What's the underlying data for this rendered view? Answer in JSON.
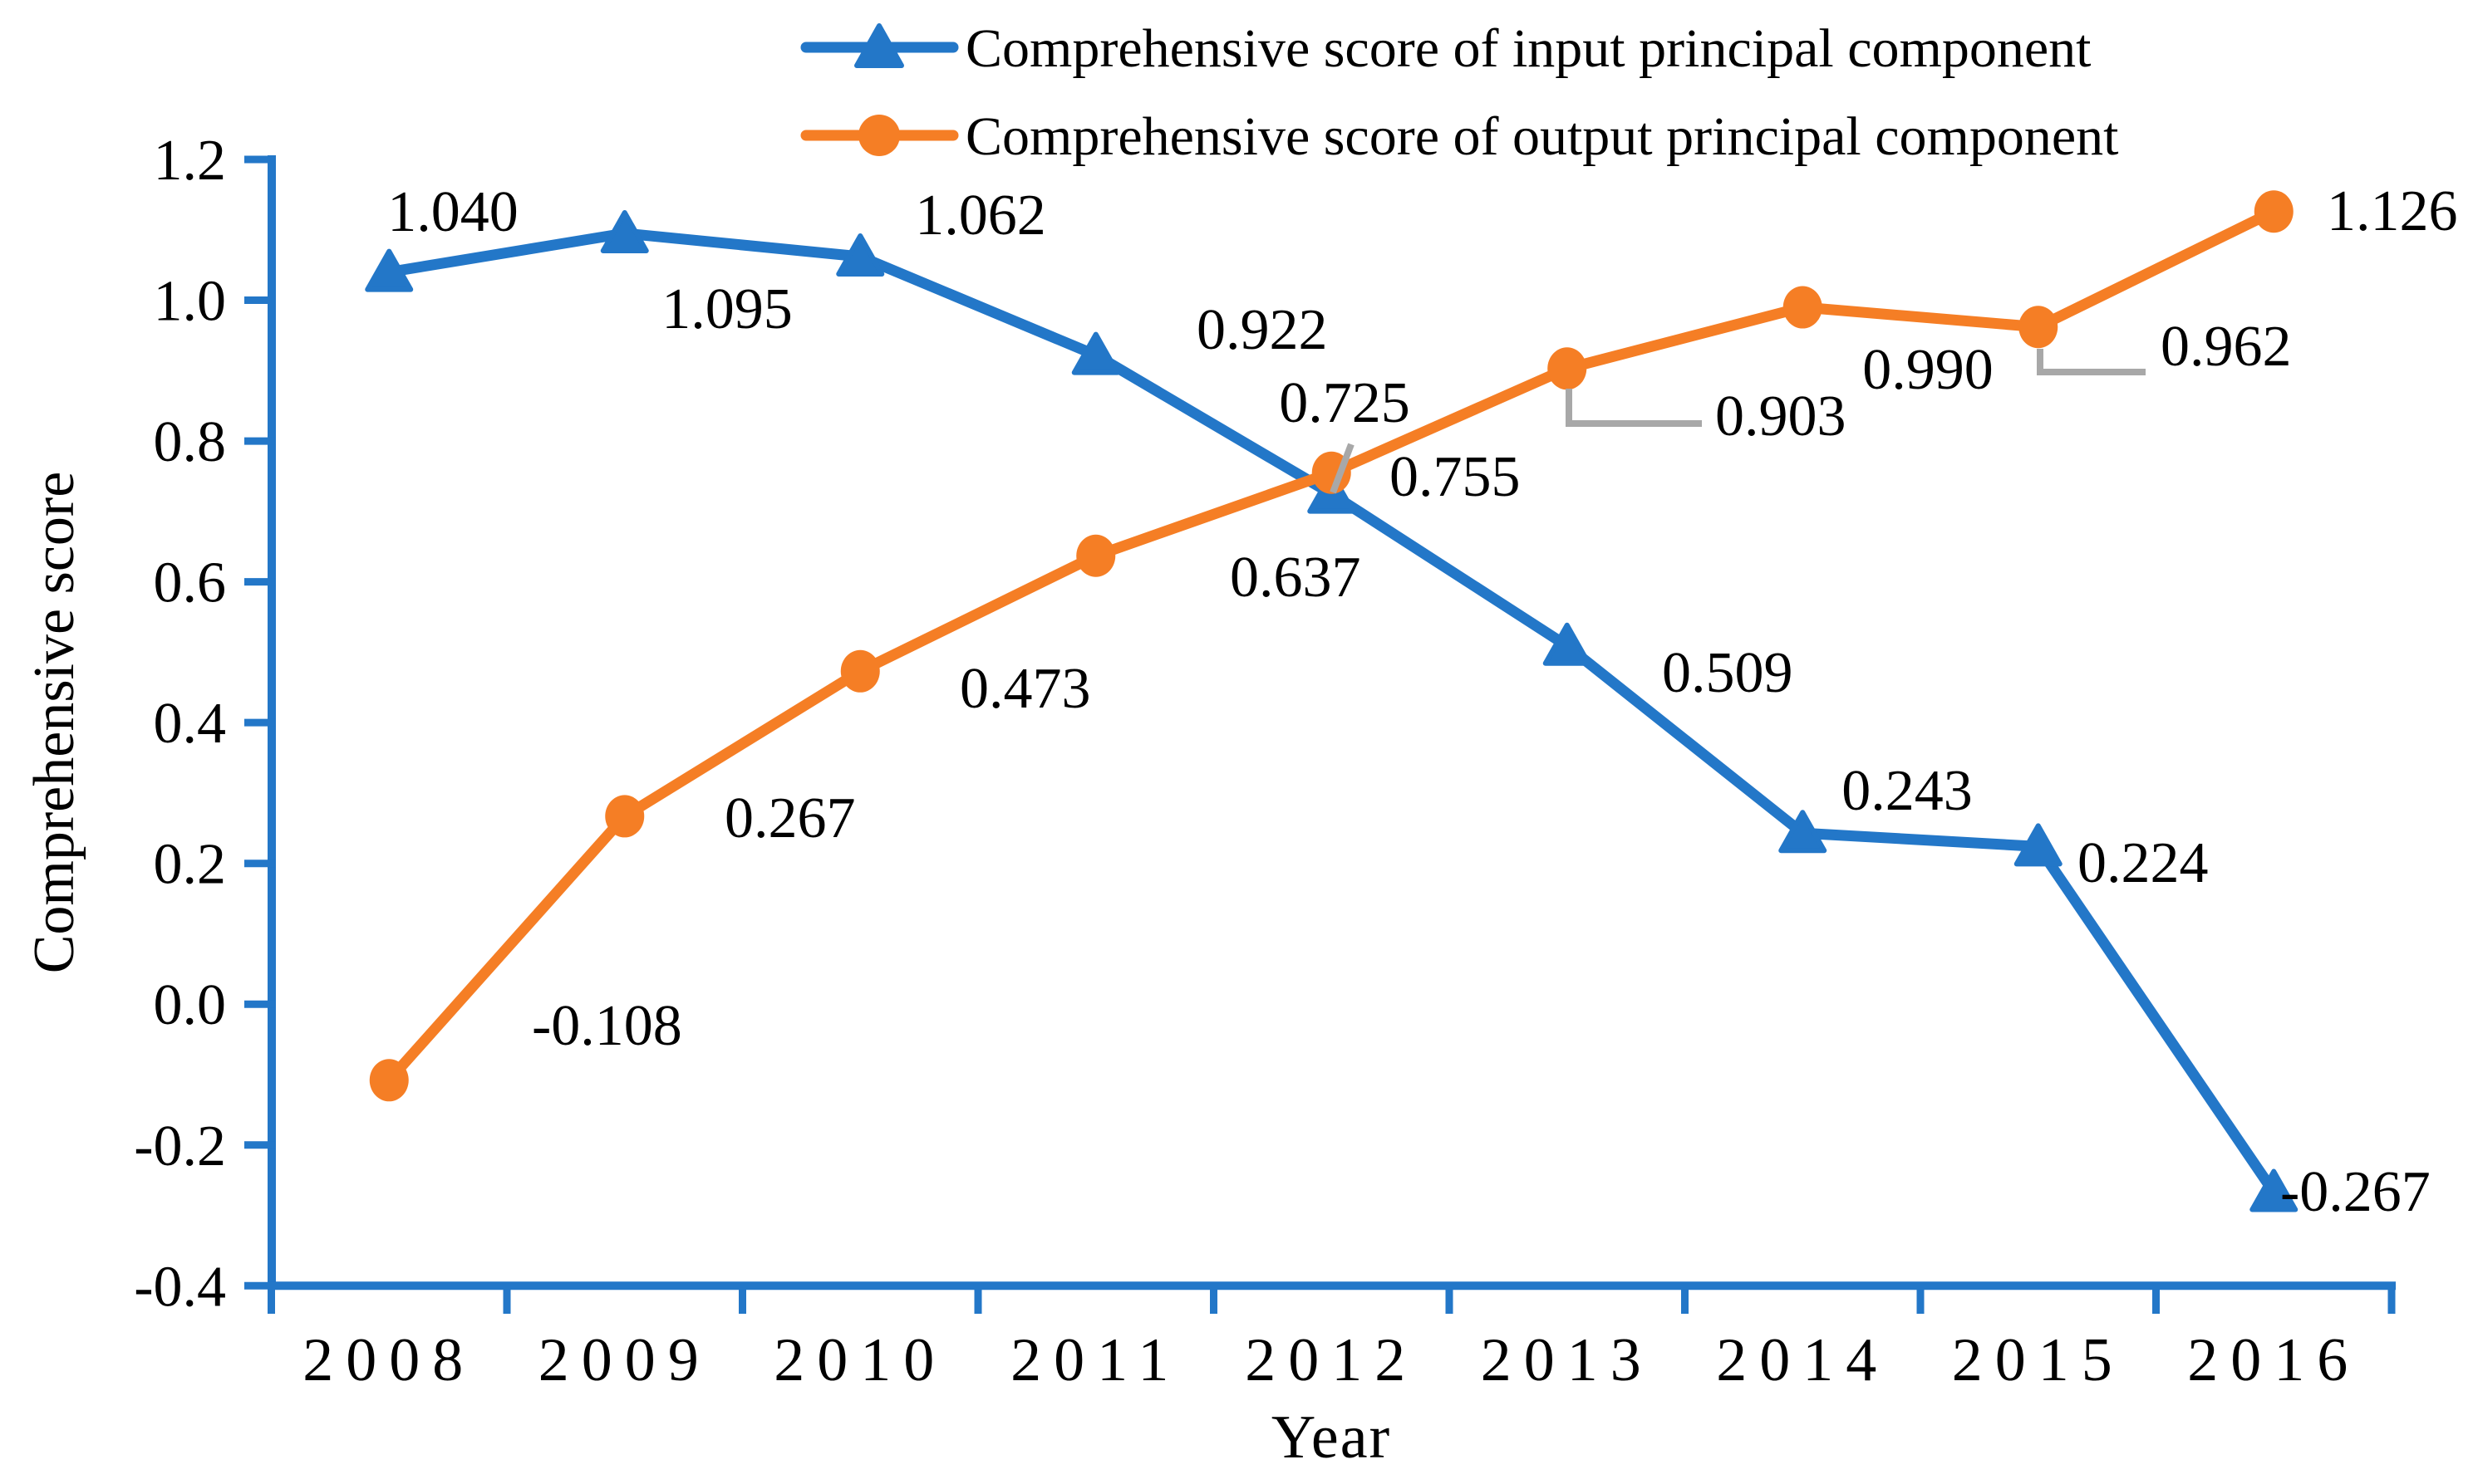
{
  "chart_data": {
    "type": "line",
    "title": "",
    "xlabel": "Year",
    "ylabel": "Comprehensive score",
    "x_categories": [
      "2008",
      "2009",
      "2010",
      "2011",
      "2012",
      "2013",
      "2014",
      "2015",
      "2016"
    ],
    "ylim": [
      -0.4,
      1.2
    ],
    "y_ticks": [
      "1.2",
      "1.0",
      "0.8",
      "0.6",
      "0.4",
      "0.2",
      "0.0",
      "-0.2",
      "-0.4"
    ],
    "grid": false,
    "legend_position": "top-center",
    "axis_color": "#2377C8",
    "leader_line_color": "#A8A8A8",
    "series": [
      {
        "name": "Comprehensive score of input principal component",
        "color": "#2377C8",
        "marker": "triangle",
        "values": [
          1.04,
          1.095,
          1.062,
          0.922,
          0.725,
          0.509,
          0.243,
          0.224,
          -0.267
        ],
        "labels": [
          "1.040",
          "1.095",
          "1.062",
          "0.922",
          "0.725",
          "0.509",
          "0.243",
          "0.224",
          "-0.267"
        ]
      },
      {
        "name": "Comprehensive score of output principal component",
        "color": "#F57E25",
        "marker": "circle",
        "values": [
          -0.108,
          0.267,
          0.473,
          0.637,
          0.755,
          0.903,
          0.99,
          0.962,
          1.126
        ],
        "labels": [
          "-0.108",
          "0.267",
          "0.473",
          "0.637",
          "0.755",
          "0.903",
          "0.990",
          "0.962",
          "1.126"
        ]
      }
    ]
  }
}
